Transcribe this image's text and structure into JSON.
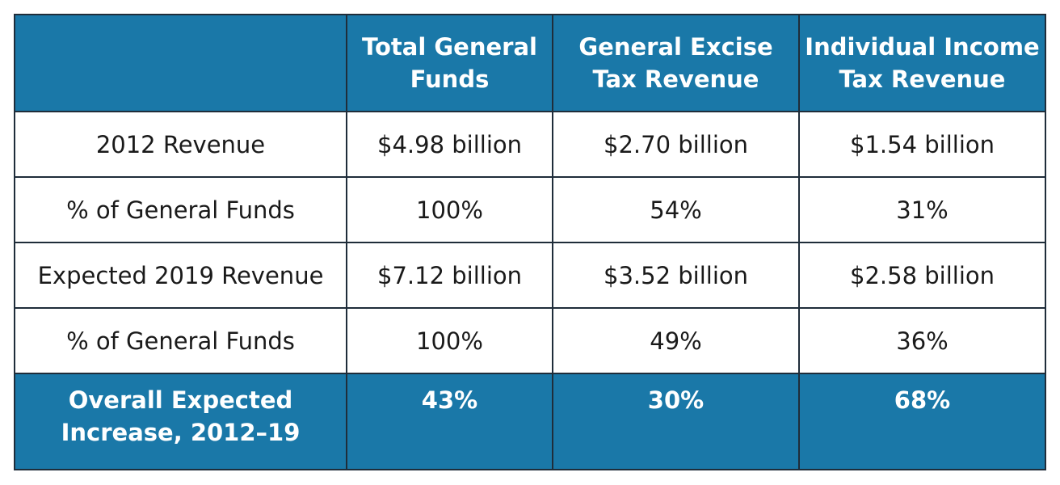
{
  "header": {
    "corner": "",
    "columns": [
      "Total General Funds",
      "General Excise Tax Revenue",
      "Individual Income Tax Revenue"
    ]
  },
  "rows": [
    {
      "label": "2012 Revenue",
      "cells": [
        "$4.98 billion",
        "$2.70 billion",
        "$1.54 billion"
      ]
    },
    {
      "label": "% of General Funds",
      "cells": [
        "100%",
        "54%",
        "31%"
      ]
    },
    {
      "label": "Expected 2019 Revenue",
      "cells": [
        "$7.12 billion",
        "$3.52 billion",
        "$2.58 billion"
      ]
    },
    {
      "label": "% of General Funds",
      "cells": [
        "100%",
        "49%",
        "36%"
      ]
    }
  ],
  "footer": {
    "label": "Overall Expected Increase, 2012–19",
    "cells": [
      "43%",
      "30%",
      "68%"
    ]
  },
  "colors": {
    "header_bg": "#1a78a8",
    "border": "#1f2d3a"
  }
}
